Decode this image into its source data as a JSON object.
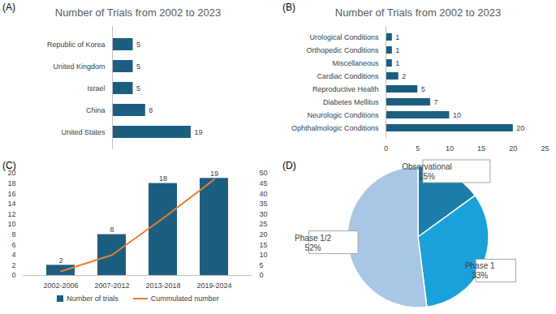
{
  "chart_data": [
    {
      "panel": "(A)",
      "type": "bar",
      "orientation": "horizontal",
      "title": "Number of Trials from 2002 to 2023",
      "categories": [
        "Republic of Korea",
        "United Kingdom",
        "Israel",
        "China",
        "United States"
      ],
      "values": [
        5,
        5,
        5,
        8,
        19
      ],
      "color": "#1b5e80",
      "xlim": [
        0,
        20
      ],
      "data_labels": true,
      "tick_labels": "y",
      "grid": false
    },
    {
      "panel": "(B)",
      "type": "bar",
      "orientation": "horizontal",
      "title": "Number of Trials from 2002 to 2023",
      "categories": [
        "Urological Conditions",
        "Orthopedic Conditions",
        "Miscellaneous",
        "Cardiac Conditions",
        "Reproductive Health",
        "Diabetes Mellitus",
        "Neurologic Conditions",
        "Ophthalmologic Conditions"
      ],
      "values": [
        1,
        1,
        1,
        2,
        5,
        7,
        10,
        20
      ],
      "color": "#1b5e80",
      "xlim": [
        0,
        25
      ],
      "xticks": [
        0,
        5,
        10,
        15,
        20,
        25
      ],
      "data_labels": true,
      "grid": false
    },
    {
      "panel": "(C)",
      "type": "bar",
      "categories": [
        "2002-2006",
        "2007-2012",
        "2013-2018",
        "2019-2024"
      ],
      "series": [
        {
          "name": "Number of trials",
          "type": "bar",
          "color": "#1b5e80",
          "values": [
            2,
            8,
            18,
            19
          ],
          "data_labels": true
        },
        {
          "name": "Cummulated number",
          "type": "line",
          "color": "#ed7d31",
          "values": [
            2,
            10,
            28,
            47
          ],
          "axis": "y2"
        }
      ],
      "ylim": [
        0,
        20
      ],
      "yticks": [
        0,
        2,
        4,
        6,
        8,
        10,
        12,
        14,
        16,
        18,
        20
      ],
      "y2lim": [
        0,
        50
      ],
      "y2ticks": [
        0,
        5,
        10,
        15,
        20,
        25,
        30,
        35,
        40,
        45,
        50
      ],
      "legend": "bottom",
      "grid": false
    },
    {
      "panel": "(D)",
      "type": "pie",
      "categories": [
        "Observational",
        "Phase 1",
        "Phase 1/2"
      ],
      "values": [
        15,
        33,
        52
      ],
      "value_labels": [
        "15%",
        "33%",
        "52%"
      ],
      "colors": [
        "#1c7dab",
        "#1ba1d9",
        "#a9c6e4"
      ],
      "data_labels": true
    }
  ]
}
